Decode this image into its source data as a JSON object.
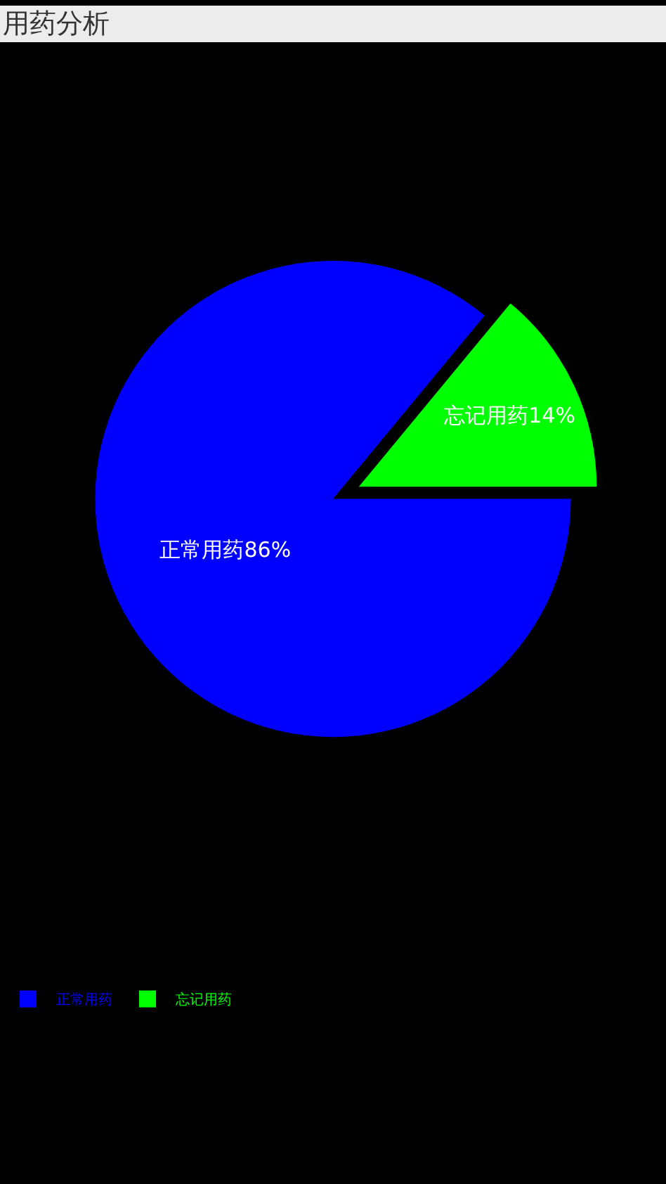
{
  "chart_data": {
    "type": "pie",
    "title": "用药分析",
    "categories": [
      "正常用药",
      "忘记用药"
    ],
    "values": [
      86,
      14
    ],
    "colors": [
      "#0000ff",
      "#00ff00"
    ],
    "value_labels": [
      "正常用药86%",
      "忘记用药14%"
    ],
    "legend": "bottom left"
  }
}
